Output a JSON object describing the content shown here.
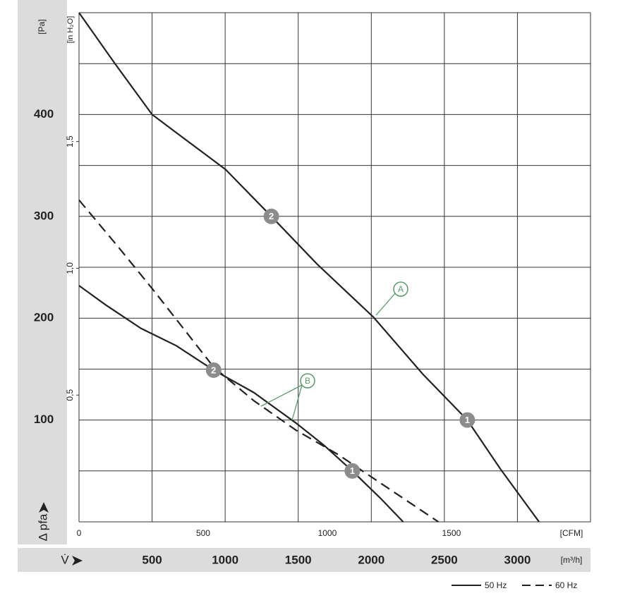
{
  "chart_data": {
    "type": "line",
    "x_label": "V̇",
    "x_unit": "[m³/h]",
    "x2_unit": "[CFM]",
    "y_label": "Δ pfa",
    "y_unit": "[Pa]",
    "y2_unit": "[in H₂O]",
    "xlim": [
      0,
      3500
    ],
    "xticks": [
      500,
      1000,
      1500,
      2000,
      2500,
      3000
    ],
    "x2lim": [
      0,
      2060
    ],
    "x2ticks": [
      0,
      500,
      1000,
      1500
    ],
    "ylim": [
      0,
      500
    ],
    "yticks": [
      100,
      200,
      300,
      400
    ],
    "ygrid": [
      0,
      50,
      100,
      150,
      200,
      250,
      300,
      350,
      400,
      450,
      500
    ],
    "xgrid": [
      0,
      500,
      1000,
      1500,
      2000,
      2500,
      3000,
      3500
    ],
    "y2lim": [
      0,
      2.008
    ],
    "y2ticks": [
      {
        "value": 0.5,
        "label": "0,5"
      },
      {
        "value": 1.0,
        "label": "1,0"
      },
      {
        "value": 1.5,
        "label": "1,5"
      }
    ],
    "legend": [
      {
        "label": "50 Hz",
        "dashed": false
      },
      {
        "label": "60 Hz",
        "dashed": true
      }
    ],
    "series": [
      {
        "legend": 0,
        "color": "#222222",
        "x": [
          0,
          246,
          500,
          714,
          1003,
          1316,
          1630,
          2015,
          2353,
          2657,
          2883,
          3148
        ],
        "values": [
          500,
          450,
          400,
          377,
          346,
          300,
          253,
          201,
          145,
          100,
          52,
          0
        ]
      },
      {
        "legend": 0,
        "color": "#222222",
        "x": [
          0,
          183,
          424,
          665,
          921,
          1196,
          1485,
          1678,
          1870,
          2064,
          2218
        ],
        "values": [
          232,
          213,
          190,
          173,
          149,
          127,
          97,
          75,
          50,
          23,
          0
        ]
      },
      {
        "legend": 1,
        "color": "#222222",
        "x": [
          0,
          251,
          501,
          714,
          921,
          1196,
          1485,
          1774,
          2064,
          2459
        ],
        "values": [
          316,
          273,
          229,
          190,
          152,
          119,
          90,
          66,
          38,
          0
        ]
      }
    ],
    "points": [
      {
        "series": 0,
        "label": "2",
        "x": 1316,
        "y": 300
      },
      {
        "series": 0,
        "label": "1",
        "x": 2657,
        "y": 100
      },
      {
        "series": 1,
        "label": "2",
        "x": 921,
        "y": 149
      },
      {
        "series": 1,
        "label": "1",
        "x": 1870,
        "y": 50
      }
    ],
    "annotations": [
      {
        "text": "A",
        "targets": [
          0
        ],
        "color": "#5a9a6a"
      },
      {
        "text": "B",
        "targets": [
          1,
          2
        ],
        "color": "#5a9a6a"
      }
    ]
  }
}
